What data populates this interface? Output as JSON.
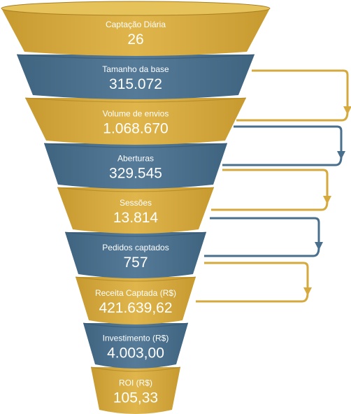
{
  "colors": {
    "gold": "#d6a93e",
    "gold_light": "#e6c25a",
    "gold_dark": "#a98023",
    "blue": "#4a6f8c",
    "blue_light": "#5b819f",
    "blue_dark": "#35526a"
  },
  "stages": [
    {
      "label": "Captação Diária",
      "value": "26",
      "color": "gold"
    },
    {
      "label": "Tamanho da base",
      "value": "315.072",
      "color": "blue"
    },
    {
      "label": "Volume de envios",
      "value": "1.068.670",
      "color": "gold"
    },
    {
      "label": "Aberturas",
      "value": "329.545",
      "color": "blue"
    },
    {
      "label": "Sessões",
      "value": "13.814",
      "color": "gold"
    },
    {
      "label": "Pedidos captados",
      "value": "757",
      "color": "blue"
    },
    {
      "label": "Receita Captada (R$)",
      "value": "421.639,62",
      "color": "gold"
    },
    {
      "label": "Investimento (R$)",
      "value": "4.003,00",
      "color": "blue"
    },
    {
      "label": "ROI (R$)",
      "value": "105,33",
      "color": "gold"
    }
  ],
  "connectors": [
    {
      "color": "gold"
    },
    {
      "color": "blue"
    },
    {
      "color": "gold"
    },
    {
      "color": "blue"
    },
    {
      "color": "gold"
    }
  ]
}
